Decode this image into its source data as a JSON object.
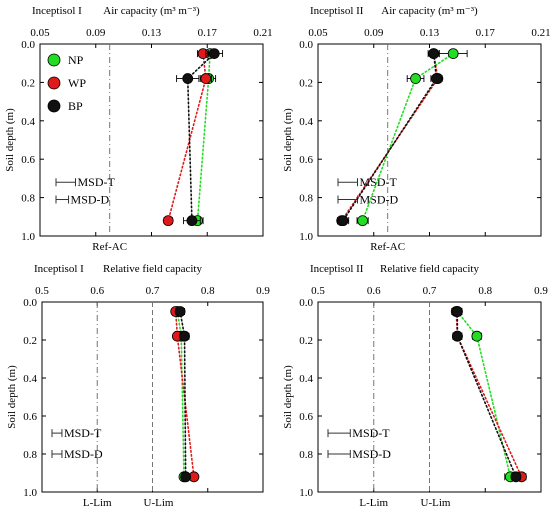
{
  "colors": {
    "NP": "#22dd22",
    "WP": "#e01a1a",
    "BP": "#111111"
  },
  "chart_data": [
    {
      "panel_tag": "Inceptisol I",
      "title": "Air capacity (m³ m⁻³)",
      "ylabel": "Soil depth (m)",
      "type": "scatter",
      "xlim": [
        0.05,
        0.21
      ],
      "xticks": [
        "0.05",
        "0.09",
        "0.13",
        "0.17",
        "0.21"
      ],
      "ylim": [
        0,
        1
      ],
      "yticks": [
        "0.0",
        "0.2",
        "0.4",
        "0.6",
        "0.8",
        "1.0"
      ],
      "legend": [
        {
          "key": "NP",
          "label": "NP"
        },
        {
          "key": "WP",
          "label": "WP"
        },
        {
          "key": "BP",
          "label": "BP"
        }
      ],
      "series": [
        {
          "name": "NP",
          "depth": [
            0.05,
            0.18,
            0.92
          ],
          "values": [
            0.172,
            0.171,
            0.163
          ],
          "err": [
            0.005,
            0.005,
            0.004
          ]
        },
        {
          "name": "WP",
          "depth": [
            0.05,
            0.18,
            0.92
          ],
          "values": [
            0.167,
            0.169,
            0.142
          ],
          "err": [
            0.004,
            0.004,
            0.003
          ]
        },
        {
          "name": "BP",
          "depth": [
            0.05,
            0.18,
            0.92
          ],
          "values": [
            0.175,
            0.156,
            0.159
          ],
          "err": [
            0.006,
            0.008,
            0.006
          ]
        }
      ],
      "ref_lines": [
        {
          "label": "Ref-AC",
          "x": 0.1,
          "style": "dashdot"
        }
      ],
      "msd": [
        {
          "label": "MSD-T",
          "width": 0.014
        },
        {
          "label": "MSD-D",
          "width": 0.009
        }
      ]
    },
    {
      "panel_tag": "Inceptisol II",
      "title": "Air capacity (m³ m⁻³)",
      "ylabel": "Soil depth (m)",
      "type": "scatter",
      "xlim": [
        0.05,
        0.21
      ],
      "xticks": [
        "0.05",
        "0.09",
        "0.13",
        "0.17",
        "0.21"
      ],
      "ylim": [
        0,
        1
      ],
      "yticks": [
        "0.0",
        "0.2",
        "0.4",
        "0.6",
        "0.8",
        "1.0"
      ],
      "legend": [],
      "series": [
        {
          "name": "NP",
          "depth": [
            0.05,
            0.18,
            0.92
          ],
          "values": [
            0.147,
            0.12,
            0.082
          ],
          "err": [
            0.01,
            0.006,
            0.004
          ]
        },
        {
          "name": "WP",
          "depth": [
            0.05,
            0.18,
            0.92
          ],
          "values": [
            0.133,
            0.136,
            0.067
          ],
          "err": [
            0.002,
            0.003,
            0.003
          ]
        },
        {
          "name": "BP",
          "depth": [
            0.05,
            0.18,
            0.92
          ],
          "values": [
            0.133,
            0.135,
            0.068
          ],
          "err": [
            0.004,
            0.004,
            0.004
          ]
        }
      ],
      "ref_lines": [
        {
          "label": "Ref-AC",
          "x": 0.1,
          "style": "dashdot"
        }
      ],
      "msd": [
        {
          "label": "MSD-T",
          "width": 0.014
        },
        {
          "label": "MSD-D",
          "width": 0.014
        }
      ]
    },
    {
      "panel_tag": "Inceptisol I",
      "title": "Relative field capacity",
      "ylabel": "Soil depth (m)",
      "type": "scatter",
      "xlim": [
        0.5,
        0.9
      ],
      "xticks": [
        "0.5",
        "0.6",
        "0.7",
        "0.8",
        "0.9"
      ],
      "ylim": [
        0,
        1
      ],
      "yticks": [
        "0.0",
        "0.2",
        "0.4",
        "0.6",
        "0.8",
        "1.0"
      ],
      "legend": [],
      "series": [
        {
          "name": "NP",
          "depth": [
            0.05,
            0.18,
            0.92
          ],
          "values": [
            0.745,
            0.752,
            0.757
          ],
          "err": [
            0.008,
            0.008,
            0.006
          ]
        },
        {
          "name": "WP",
          "depth": [
            0.05,
            0.18,
            0.92
          ],
          "values": [
            0.742,
            0.745,
            0.775
          ],
          "err": [
            0.006,
            0.006,
            0.006
          ]
        },
        {
          "name": "BP",
          "depth": [
            0.05,
            0.18,
            0.92
          ],
          "values": [
            0.75,
            0.758,
            0.76
          ],
          "err": [
            0.008,
            0.008,
            0.006
          ]
        }
      ],
      "ref_lines": [
        {
          "label": "L-Lim",
          "x": 0.6,
          "style": "dashdot"
        },
        {
          "label": "U-Lim",
          "x": 0.7,
          "style": "dash"
        }
      ],
      "msd": [
        {
          "label": "MSD-T",
          "width": 0.018
        },
        {
          "label": "MSD-D",
          "width": 0.018
        }
      ]
    },
    {
      "panel_tag": "Inceptisol II",
      "title": "Relative field capacity",
      "ylabel": "Soil depth (m)",
      "type": "scatter",
      "xlim": [
        0.5,
        0.9
      ],
      "xticks": [
        "0.5",
        "0.6",
        "0.7",
        "0.8",
        "0.9"
      ],
      "ylim": [
        0,
        1
      ],
      "yticks": [
        "0.0",
        "0.2",
        "0.4",
        "0.6",
        "0.8",
        "1.0"
      ],
      "legend": [],
      "series": [
        {
          "name": "NP",
          "depth": [
            0.05,
            0.18,
            0.92
          ],
          "values": [
            0.75,
            0.785,
            0.845
          ],
          "err": [
            0.008,
            0.008,
            0.01
          ]
        },
        {
          "name": "WP",
          "depth": [
            0.05,
            0.18,
            0.92
          ],
          "values": [
            0.748,
            0.75,
            0.865
          ],
          "err": [
            0.008,
            0.008,
            0.008
          ]
        },
        {
          "name": "BP",
          "depth": [
            0.05,
            0.18,
            0.92
          ],
          "values": [
            0.75,
            0.75,
            0.855
          ],
          "err": [
            0.008,
            0.008,
            0.008
          ]
        }
      ],
      "ref_lines": [
        {
          "label": "L-Lim",
          "x": 0.6,
          "style": "dashdot"
        },
        {
          "label": "U-Lim",
          "x": 0.7,
          "style": "dash"
        }
      ],
      "msd": [
        {
          "label": "MSD-T",
          "width": 0.04
        },
        {
          "label": "MSD-D",
          "width": 0.04
        }
      ]
    }
  ]
}
